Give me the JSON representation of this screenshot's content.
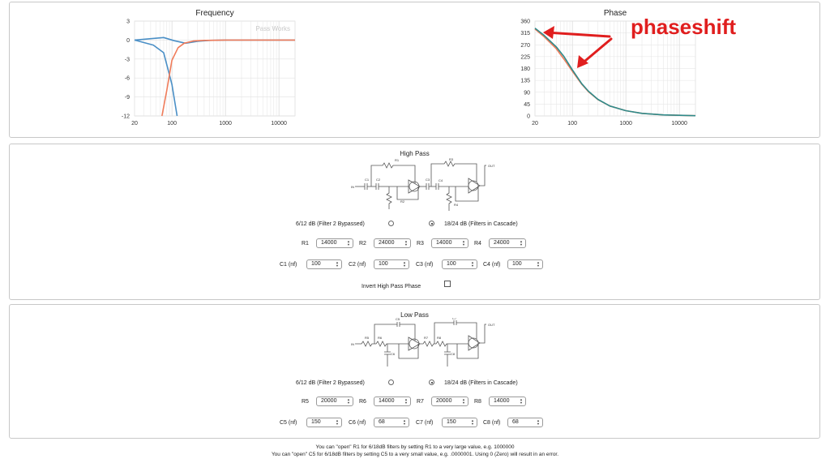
{
  "annotation": {
    "text": "phaseshift",
    "color": "#e01e1e"
  },
  "chart_data": [
    {
      "type": "line",
      "title": "Frequency",
      "watermark": "Pass Works",
      "xscale": "log",
      "xlim": [
        20,
        20000
      ],
      "ylim": [
        -12,
        3
      ],
      "xticks": [
        "20",
        "100",
        "1000",
        "10000"
      ],
      "yticks": [
        "3",
        "0",
        "-3",
        "-6",
        "-9",
        "-12"
      ],
      "grid": true,
      "series": [
        {
          "color": "#4a8fc6",
          "x": [
            20,
            45,
            70,
            100,
            125
          ],
          "y": [
            0,
            -0.8,
            -2,
            -7,
            -12
          ]
        },
        {
          "color": "#4a8fc6",
          "x": [
            20,
            70,
            110,
            180,
            300,
            500,
            1000,
            20000
          ],
          "y": [
            0,
            0.4,
            -0.1,
            -0.5,
            -0.2,
            -0.05,
            0,
            0
          ]
        },
        {
          "color": "#f07c5a",
          "x": [
            65,
            80,
            100,
            130,
            170,
            250,
            400,
            1000,
            20000
          ],
          "y": [
            -12,
            -8,
            -3.2,
            -1.2,
            -0.5,
            -0.15,
            -0.05,
            0,
            0
          ]
        }
      ]
    },
    {
      "type": "line",
      "title": "Phase",
      "xscale": "log",
      "xlim": [
        20,
        20000
      ],
      "ylim": [
        0,
        360
      ],
      "xticks": [
        "20",
        "100",
        "1000",
        "10000"
      ],
      "yticks": [
        "360",
        "315",
        "270",
        "225",
        "180",
        "135",
        "90",
        "45",
        "0"
      ],
      "grid": true,
      "series": [
        {
          "color": "#f07c5a",
          "x": [
            20,
            30,
            50,
            70,
            100,
            150,
            200,
            300,
            500,
            1000,
            2000,
            5000,
            20000
          ],
          "y": [
            330,
            300,
            255,
            215,
            170,
            120,
            92,
            62,
            38,
            20,
            10,
            4,
            1
          ]
        },
        {
          "color": "#2e8b8b",
          "x": [
            20,
            30,
            50,
            70,
            100,
            150,
            200,
            300,
            500,
            1000,
            2000,
            5000,
            20000
          ],
          "y": [
            333,
            305,
            262,
            225,
            175,
            122,
            94,
            63,
            38,
            20,
            10,
            4,
            1
          ]
        }
      ]
    }
  ],
  "high_pass": {
    "title": "High Pass",
    "schematic": {
      "labels": [
        "R1",
        "R3",
        "C1",
        "C2",
        "C3",
        "C4",
        "R2",
        "R4",
        "IN",
        "OUT"
      ]
    },
    "mode_left": "6/12 dB (Filter 2 Bypassed)",
    "mode_right": "18/24 dB (Filters in Cascade)",
    "mode_selected": "right",
    "resistors": [
      {
        "label": "R1",
        "value": "14000"
      },
      {
        "label": "R2",
        "value": "24000"
      },
      {
        "label": "R3",
        "value": "14000"
      },
      {
        "label": "R4",
        "value": "24000"
      }
    ],
    "capacitors": [
      {
        "label": "C1 (nf)",
        "value": "100"
      },
      {
        "label": "C2 (nf)",
        "value": "100"
      },
      {
        "label": "C3 (nf)",
        "value": "100"
      },
      {
        "label": "C4 (nf)",
        "value": "100"
      }
    ],
    "invert_label": "Invert High Pass Phase",
    "invert_checked": false
  },
  "low_pass": {
    "title": "Low Pass",
    "schematic": {
      "labels": [
        "C5",
        "C7",
        "R5",
        "R6",
        "R7",
        "R8",
        "C6",
        "C8",
        "IN",
        "OUT"
      ]
    },
    "mode_left": "6/12 dB (Filter 2 Bypassed)",
    "mode_right": "18/24 dB (Filters in Cascade)",
    "mode_selected": "right",
    "resistors": [
      {
        "label": "R5",
        "value": "20000"
      },
      {
        "label": "R6",
        "value": "14000"
      },
      {
        "label": "R7",
        "value": "20000"
      },
      {
        "label": "R8",
        "value": "14000"
      }
    ],
    "capacitors": [
      {
        "label": "C5 (nf)",
        "value": "150"
      },
      {
        "label": "C6 (nf)",
        "value": "68"
      },
      {
        "label": "C7 (nf)",
        "value": "150"
      },
      {
        "label": "C8 (nf)",
        "value": "68"
      }
    ]
  },
  "notes": [
    "You can \"open\" R1 for 6/18dB filters by setting R1 to a very large value, e.g. 1000000",
    "You can \"open\" C5 for 6/18dB filters by setting C5 to a very small value, e.g. .0000001. Using 0 (Zero) will result in an error."
  ]
}
